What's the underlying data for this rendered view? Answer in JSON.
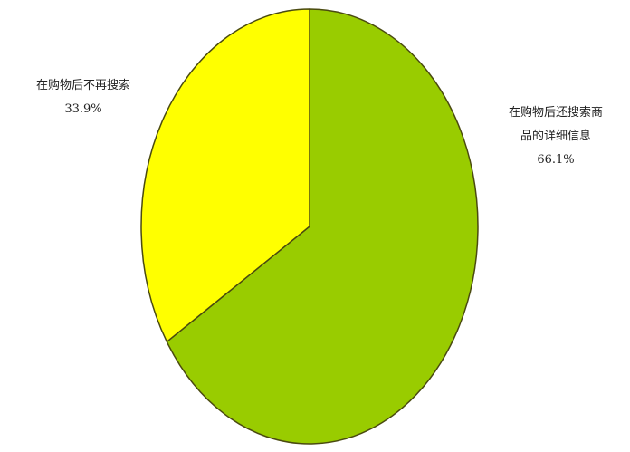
{
  "chart_data": {
    "type": "pie",
    "title": "",
    "colors": {
      "edge": "#4a4a10"
    },
    "slices": [
      {
        "label_lines": [
          "在购物后还搜索商",
          "品的详细信息"
        ],
        "value_label": "66.1%",
        "value": 66.1,
        "color": "#99cc00"
      },
      {
        "label_lines": [
          "在购物后不再搜索"
        ],
        "value_label": "33.9%",
        "value": 33.9,
        "color": "#ffff00"
      }
    ]
  }
}
